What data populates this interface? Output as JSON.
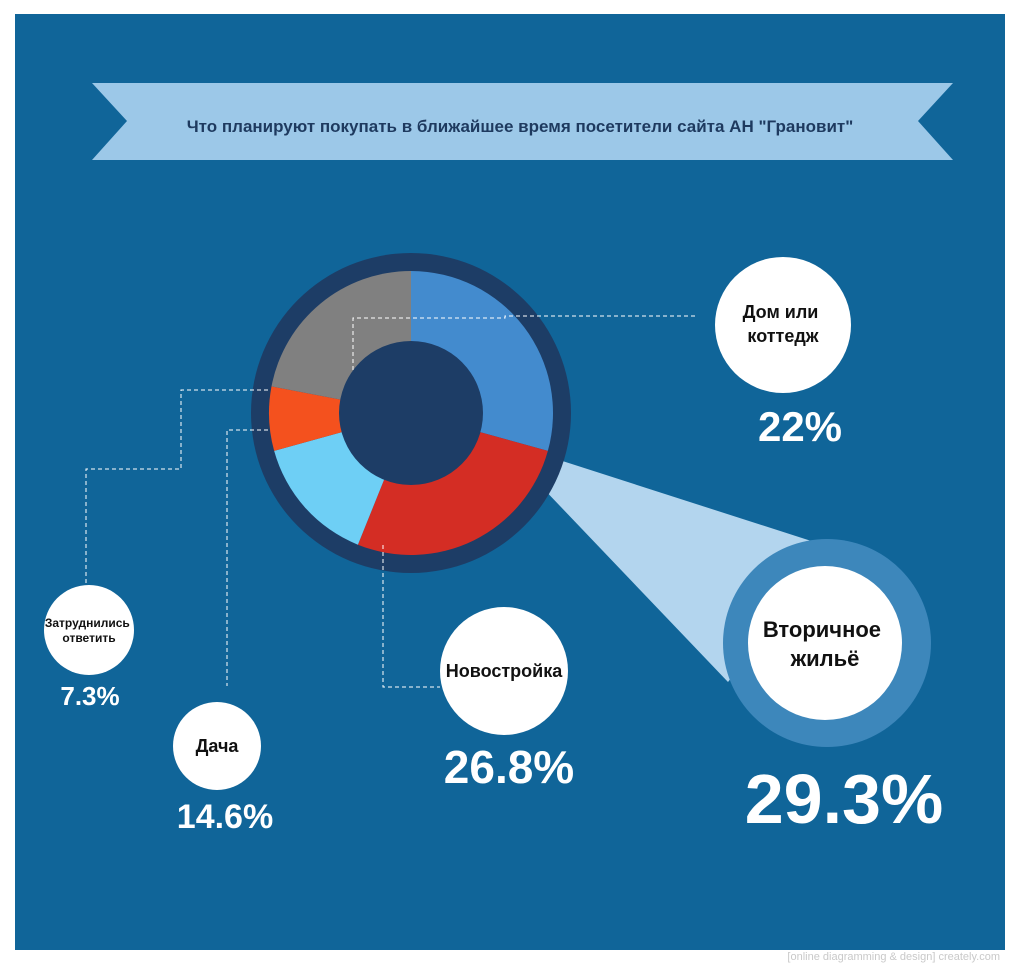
{
  "chart_data": {
    "type": "pie",
    "title": "Что планируют покупать в ближайшее время посетители сайта АН \"Грановит\"",
    "slices": [
      {
        "label": "Вторичное жильё",
        "value": 29.3,
        "display": "29.3%",
        "color": "#438bce"
      },
      {
        "label": "Новостройка",
        "value": 26.8,
        "display": "26.8%",
        "color": "#d42d24"
      },
      {
        "label": "Дача",
        "value": 14.6,
        "display": "14.6%",
        "color": "#6ecff5"
      },
      {
        "label": "Затруднились ответить",
        "value": 7.3,
        "display": "7.3%",
        "color": "#f4511e"
      },
      {
        "label": "Дом или коттедж",
        "value": 22,
        "display": "22%",
        "color": "#808080"
      }
    ],
    "colors": {
      "background": "#106599",
      "ring": "#1d3d66",
      "banner": "#9cc8e8",
      "highlight": "#b3d5ee",
      "highlight_ring": "#3d87bb"
    }
  },
  "watermark": "[online diagramming & design] creately.com"
}
